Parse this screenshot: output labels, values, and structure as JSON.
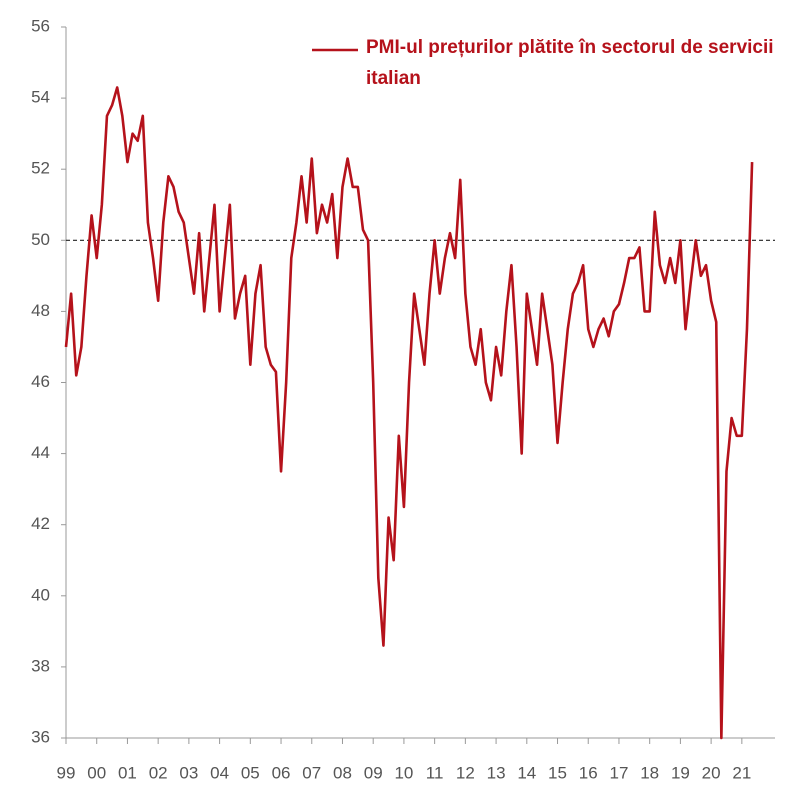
{
  "chart_data": {
    "type": "line",
    "categories": [
      "99",
      null,
      null,
      null,
      null,
      null,
      "00",
      null,
      null,
      null,
      null,
      null,
      "01",
      null,
      null,
      null,
      null,
      null,
      "02",
      null,
      null,
      null,
      null,
      null,
      "03",
      null,
      null,
      null,
      null,
      null,
      "04",
      null,
      null,
      null,
      null,
      null,
      "05",
      null,
      null,
      null,
      null,
      null,
      "06",
      null,
      null,
      null,
      null,
      null,
      "07",
      null,
      null,
      null,
      null,
      null,
      "08",
      null,
      null,
      null,
      null,
      null,
      "09",
      null,
      null,
      null,
      null,
      null,
      "10",
      null,
      null,
      null,
      null,
      null,
      "11",
      null,
      null,
      null,
      null,
      null,
      "12",
      null,
      null,
      null,
      null,
      null,
      "13",
      null,
      null,
      null,
      null,
      null,
      "14",
      null,
      null,
      null,
      null,
      null,
      "15",
      null,
      null,
      null,
      null,
      null,
      "16",
      null,
      null,
      null,
      null,
      null,
      "17",
      null,
      null,
      null,
      null,
      null,
      "18",
      null,
      null,
      null,
      null,
      null,
      "19",
      null,
      null,
      null,
      null,
      null,
      "20",
      null,
      null,
      null,
      null,
      null,
      "21",
      null,
      null
    ],
    "series": [
      {
        "name": "PMI-ul prețurilor plătite în sectorul de servicii italian",
        "color": "#b5121b",
        "values": [
          47,
          48.5,
          46.2,
          47,
          49,
          50.7,
          49.5,
          51,
          53.5,
          53.8,
          54.3,
          53.5,
          52.2,
          53,
          52.8,
          53.5,
          50.5,
          49.5,
          48.3,
          50.5,
          51.8,
          51.5,
          50.8,
          50.5,
          49.5,
          48.5,
          50.2,
          48,
          49.5,
          51,
          48,
          49.5,
          51,
          47.8,
          48.5,
          49,
          46.5,
          48.5,
          49.3,
          47,
          46.5,
          46.3,
          43.5,
          46,
          49.5,
          50.5,
          51.8,
          50.5,
          52.3,
          50.2,
          51,
          50.5,
          51.3,
          49.5,
          51.5,
          52.3,
          51.5,
          51.5,
          50.3,
          50,
          46,
          40.5,
          38.6,
          42.2,
          41,
          44.5,
          42.5,
          46,
          48.5,
          47.5,
          46.5,
          48.5,
          50,
          48.5,
          49.5,
          50.2,
          49.5,
          51.7,
          48.5,
          47,
          46.5,
          47.5,
          46,
          45.5,
          47,
          46.2,
          48,
          49.3,
          47,
          44,
          48.5,
          47.5,
          46.5,
          48.5,
          47.5,
          46.5,
          44.3,
          46,
          47.5,
          48.5,
          48.8,
          49.3,
          47.5,
          47,
          47.5,
          47.8,
          47.3,
          48,
          48.2,
          48.8,
          49.5,
          49.5,
          49.8,
          48,
          48,
          50.8,
          49.3,
          48.8,
          49.5,
          48.8,
          50,
          47.5,
          48.8,
          50,
          49,
          49.3,
          48.3,
          47.7,
          36,
          43.5,
          45,
          44.5,
          44.5,
          47.5,
          52.2
        ]
      }
    ],
    "ylim": [
      36,
      56
    ],
    "yticks": [
      36,
      38,
      40,
      42,
      44,
      46,
      48,
      50,
      52,
      54,
      56
    ],
    "hline": 50
  }
}
